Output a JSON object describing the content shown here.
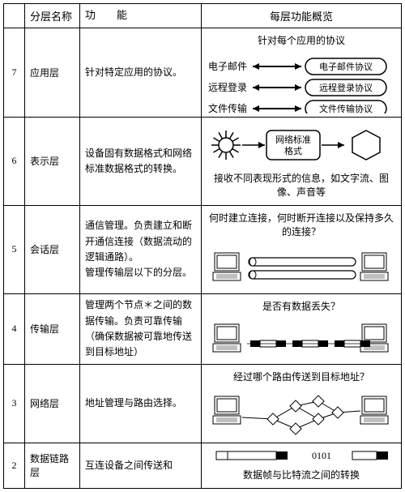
{
  "headers": {
    "num": "",
    "name": "分层名称",
    "func": "功　　能",
    "diag": "每层功能概览"
  },
  "rows": [
    {
      "num": "7",
      "name": "应用层",
      "func": "针对特定应用的协议。",
      "diag": {
        "title": "针对每个应用的协议",
        "items": [
          {
            "left": "电子邮件",
            "right": "电子邮件协议"
          },
          {
            "left": "远程登录",
            "right": "远程登录协议"
          },
          {
            "left": "文件传输",
            "right": "文件传输协议"
          }
        ]
      }
    },
    {
      "num": "6",
      "name": "表示层",
      "func": "设备固有数据格式和网络标准数据格式的转换。",
      "diag": {
        "box_label": "网络标准格式",
        "caption": "接收不同表现形式的信息，如文字流、图像、声音等"
      }
    },
    {
      "num": "5",
      "name": "会话层",
      "func": "通信管理。负责建立和断开通信连接（数据流动的逻辑通路）。\n管理传输层以下的分层。",
      "diag": {
        "caption": "何时建立连接，何时断开连接以及保持多久的连接？"
      }
    },
    {
      "num": "4",
      "name": "传输层",
      "func": "管理两个节点＊之间的数据传输。负责可靠传输（确保数据被可靠地传送到目标地址）",
      "diag": {
        "caption": "是否有数据丢失？"
      }
    },
    {
      "num": "3",
      "name": "网络层",
      "func": "地址管理与路由选择。",
      "diag": {
        "caption": "经过哪个路由传送到目标地址？"
      }
    },
    {
      "num": "2",
      "name": "数据链路层",
      "func": "互连设备之间传送和",
      "diag": {
        "bits": "0101",
        "caption": "数据帧与比特流之间的转换"
      }
    }
  ],
  "colors": {
    "line": "#000000",
    "bg": "#ffffff",
    "fill_dark": "#000000",
    "fill_gray": "#888888"
  }
}
